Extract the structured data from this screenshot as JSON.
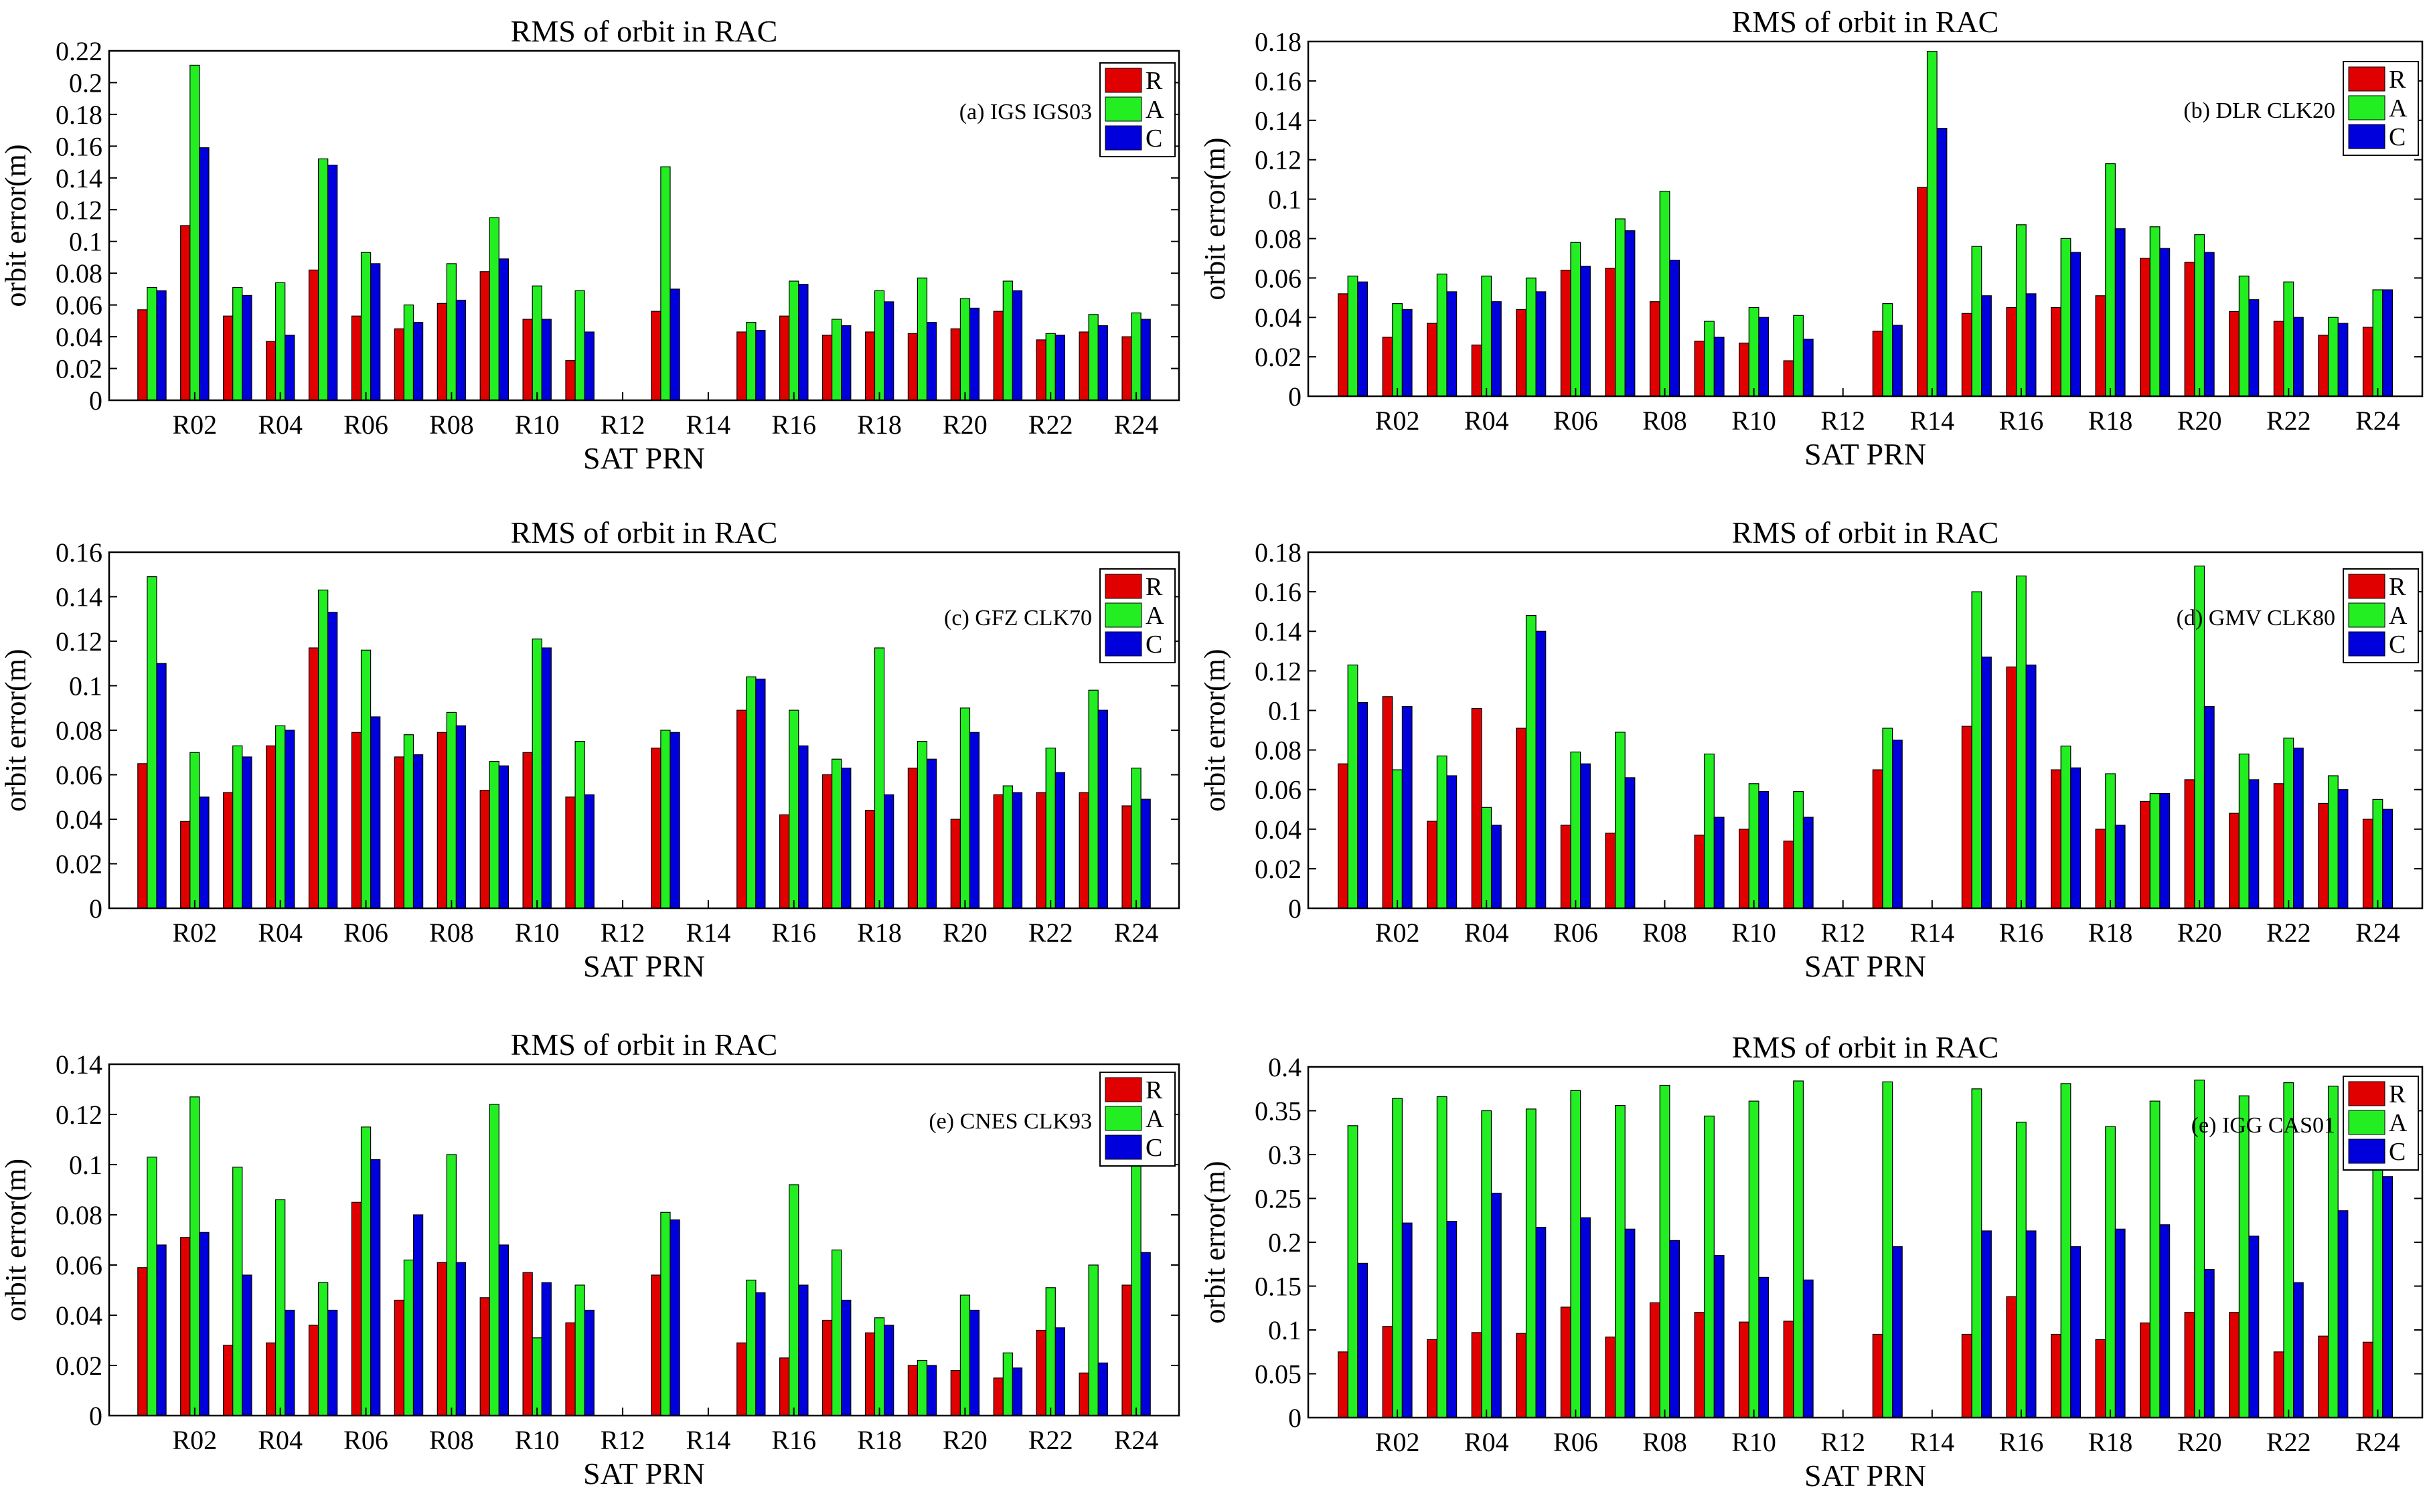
{
  "colors": {
    "R": "#e00000",
    "A": "#22ee22",
    "C": "#0000dd"
  },
  "chart_data": [
    {
      "type": "bar",
      "title": "RMS of orbit in RAC",
      "annotation": "(a) IGS IGS03",
      "xlabel": "SAT  PRN",
      "ylabel": "orbit error(m)",
      "ylim": [
        0,
        0.22
      ],
      "yticks": [
        "0",
        "0.02",
        "0.04",
        "0.06",
        "0.08",
        "0.1",
        "0.12",
        "0.14",
        "0.16",
        "0.18",
        "0.2",
        "0.22"
      ],
      "yticks_values": [
        0,
        0.02,
        0.04,
        0.06,
        0.08,
        0.1,
        0.12,
        0.14,
        0.16,
        0.18,
        0.2,
        0.22
      ],
      "categories": [
        "R01",
        "R02",
        "R03",
        "R04",
        "R05",
        "R06",
        "R07",
        "R08",
        "R09",
        "R10",
        "R11",
        "R12",
        "R13",
        "R14",
        "R15",
        "R16",
        "R17",
        "R18",
        "R19",
        "R20",
        "R21",
        "R22",
        "R23",
        "R24"
      ],
      "xtick_labels": [
        "R02",
        "R04",
        "R06",
        "R08",
        "R10",
        "R12",
        "R14",
        "R16",
        "R18",
        "R20",
        "R22",
        "R24"
      ],
      "legend": [
        "R",
        "A",
        "C"
      ],
      "series": [
        {
          "name": "R",
          "values": [
            0.057,
            0.11,
            0.053,
            0.037,
            0.082,
            0.053,
            0.045,
            0.061,
            0.081,
            0.051,
            0.025,
            0,
            0.056,
            0,
            0.043,
            0.053,
            0.041,
            0.043,
            0.042,
            0.045,
            0.056,
            0.038,
            0.043,
            0.04
          ]
        },
        {
          "name": "A",
          "values": [
            0.071,
            0.211,
            0.071,
            0.074,
            0.152,
            0.093,
            0.06,
            0.086,
            0.115,
            0.072,
            0.069,
            0,
            0.147,
            0,
            0.049,
            0.075,
            0.051,
            0.069,
            0.077,
            0.064,
            0.075,
            0.042,
            0.054,
            0.055
          ]
        },
        {
          "name": "C",
          "values": [
            0.069,
            0.159,
            0.066,
            0.041,
            0.148,
            0.086,
            0.049,
            0.063,
            0.089,
            0.051,
            0.043,
            0,
            0.07,
            0,
            0.044,
            0.073,
            0.047,
            0.062,
            0.049,
            0.058,
            0.069,
            0.041,
            0.047,
            0.051
          ]
        }
      ]
    },
    {
      "type": "bar",
      "title": "RMS of orbit in RAC",
      "annotation": "(b) DLR CLK20",
      "xlabel": "SAT  PRN",
      "ylabel": "orbit error(m)",
      "ylim": [
        0,
        0.18
      ],
      "yticks": [
        "0",
        "0.02",
        "0.04",
        "0.06",
        "0.08",
        "0.1",
        "0.12",
        "0.14",
        "0.16",
        "0.18"
      ],
      "yticks_values": [
        0,
        0.02,
        0.04,
        0.06,
        0.08,
        0.1,
        0.12,
        0.14,
        0.16,
        0.18
      ],
      "categories": [
        "R01",
        "R02",
        "R03",
        "R04",
        "R05",
        "R06",
        "R07",
        "R08",
        "R09",
        "R10",
        "R11",
        "R12",
        "R13",
        "R14",
        "R15",
        "R16",
        "R17",
        "R18",
        "R19",
        "R20",
        "R21",
        "R22",
        "R23",
        "R24"
      ],
      "xtick_labels": [
        "R02",
        "R04",
        "R06",
        "R08",
        "R10",
        "R12",
        "R14",
        "R16",
        "R18",
        "R20",
        "R22",
        "R24"
      ],
      "legend": [
        "R",
        "A",
        "C"
      ],
      "series": [
        {
          "name": "R",
          "values": [
            0.052,
            0.03,
            0.037,
            0.026,
            0.044,
            0.064,
            0.065,
            0.048,
            0.028,
            0.027,
            0.018,
            0,
            0.033,
            0.106,
            0.042,
            0.045,
            0.045,
            0.051,
            0.07,
            0.068,
            0.043,
            0.038,
            0.031,
            0.035
          ]
        },
        {
          "name": "A",
          "values": [
            0.061,
            0.047,
            0.062,
            0.061,
            0.06,
            0.078,
            0.09,
            0.104,
            0.038,
            0.045,
            0.041,
            0,
            0.047,
            0.175,
            0.076,
            0.087,
            0.08,
            0.118,
            0.086,
            0.082,
            0.061,
            0.058,
            0.04,
            0.054
          ]
        },
        {
          "name": "C",
          "values": [
            0.058,
            0.044,
            0.053,
            0.048,
            0.053,
            0.066,
            0.084,
            0.069,
            0.03,
            0.04,
            0.029,
            0,
            0.036,
            0.136,
            0.051,
            0.052,
            0.073,
            0.085,
            0.075,
            0.073,
            0.049,
            0.04,
            0.037,
            0.054
          ]
        }
      ]
    },
    {
      "type": "bar",
      "title": "RMS of orbit in RAC",
      "annotation": "(c) GFZ CLK70",
      "xlabel": "SAT  PRN",
      "ylabel": "orbit error(m)",
      "ylim": [
        0,
        0.16
      ],
      "yticks": [
        "0",
        "0.02",
        "0.04",
        "0.06",
        "0.08",
        "0.1",
        "0.12",
        "0.14",
        "0.16"
      ],
      "yticks_values": [
        0,
        0.02,
        0.04,
        0.06,
        0.08,
        0.1,
        0.12,
        0.14,
        0.16
      ],
      "categories": [
        "R01",
        "R02",
        "R03",
        "R04",
        "R05",
        "R06",
        "R07",
        "R08",
        "R09",
        "R10",
        "R11",
        "R12",
        "R13",
        "R14",
        "R15",
        "R16",
        "R17",
        "R18",
        "R19",
        "R20",
        "R21",
        "R22",
        "R23",
        "R24"
      ],
      "xtick_labels": [
        "R02",
        "R04",
        "R06",
        "R08",
        "R10",
        "R12",
        "R14",
        "R16",
        "R18",
        "R20",
        "R22",
        "R24"
      ],
      "legend": [
        "R",
        "A",
        "C"
      ],
      "series": [
        {
          "name": "R",
          "values": [
            0.065,
            0.039,
            0.052,
            0.073,
            0.117,
            0.079,
            0.068,
            0.079,
            0.053,
            0.07,
            0.05,
            0,
            0.072,
            0,
            0.089,
            0.042,
            0.06,
            0.044,
            0.063,
            0.04,
            0.051,
            0.052,
            0.052,
            0.046
          ]
        },
        {
          "name": "A",
          "values": [
            0.149,
            0.07,
            0.073,
            0.082,
            0.143,
            0.116,
            0.078,
            0.088,
            0.066,
            0.121,
            0.075,
            0,
            0.08,
            0,
            0.104,
            0.089,
            0.067,
            0.117,
            0.075,
            0.09,
            0.055,
            0.072,
            0.098,
            0.063
          ]
        },
        {
          "name": "C",
          "values": [
            0.11,
            0.05,
            0.068,
            0.08,
            0.133,
            0.086,
            0.069,
            0.082,
            0.064,
            0.117,
            0.051,
            0,
            0.079,
            0,
            0.103,
            0.073,
            0.063,
            0.051,
            0.067,
            0.079,
            0.052,
            0.061,
            0.089,
            0.049
          ]
        }
      ]
    },
    {
      "type": "bar",
      "title": "RMS of orbit in RAC",
      "annotation": "(d) GMV CLK80",
      "xlabel": "SAT  PRN",
      "ylabel": "orbit error(m)",
      "ylim": [
        0,
        0.18
      ],
      "yticks": [
        "0",
        "0.02",
        "0.04",
        "0.06",
        "0.08",
        "0.1",
        "0.12",
        "0.14",
        "0.16",
        "0.18"
      ],
      "yticks_values": [
        0,
        0.02,
        0.04,
        0.06,
        0.08,
        0.1,
        0.12,
        0.14,
        0.16,
        0.18
      ],
      "categories": [
        "R01",
        "R02",
        "R03",
        "R04",
        "R05",
        "R06",
        "R07",
        "R08",
        "R09",
        "R10",
        "R11",
        "R12",
        "R13",
        "R14",
        "R15",
        "R16",
        "R17",
        "R18",
        "R19",
        "R20",
        "R21",
        "R22",
        "R23",
        "R24"
      ],
      "xtick_labels": [
        "R02",
        "R04",
        "R06",
        "R08",
        "R10",
        "R12",
        "R14",
        "R16",
        "R18",
        "R20",
        "R22",
        "R24"
      ],
      "legend": [
        "R",
        "A",
        "C"
      ],
      "series": [
        {
          "name": "R",
          "values": [
            0.073,
            0.107,
            0.044,
            0.101,
            0.091,
            0.042,
            0.038,
            0,
            0.037,
            0.04,
            0.034,
            0,
            0.07,
            0,
            0.092,
            0.122,
            0.07,
            0.04,
            0.054,
            0.065,
            0.048,
            0.063,
            0.053,
            0.045
          ]
        },
        {
          "name": "A",
          "values": [
            0.123,
            0.07,
            0.077,
            0.051,
            0.148,
            0.079,
            0.089,
            0,
            0.078,
            0.063,
            0.059,
            0,
            0.091,
            0,
            0.16,
            0.168,
            0.082,
            0.068,
            0.058,
            0.173,
            0.078,
            0.086,
            0.067,
            0.055
          ]
        },
        {
          "name": "C",
          "values": [
            0.104,
            0.102,
            0.067,
            0.042,
            0.14,
            0.073,
            0.066,
            0,
            0.046,
            0.059,
            0.046,
            0,
            0.085,
            0,
            0.127,
            0.123,
            0.071,
            0.042,
            0.058,
            0.102,
            0.065,
            0.081,
            0.06,
            0.05
          ]
        }
      ]
    },
    {
      "type": "bar",
      "title": "RMS of orbit in RAC",
      "annotation": "(e) CNES CLK93",
      "xlabel": "SAT  PRN",
      "ylabel": "orbit error(m)",
      "ylim": [
        0,
        0.14
      ],
      "yticks": [
        "0",
        "0.02",
        "0.04",
        "0.06",
        "0.08",
        "0.1",
        "0.12",
        "0.14"
      ],
      "yticks_values": [
        0,
        0.02,
        0.04,
        0.06,
        0.08,
        0.1,
        0.12,
        0.14
      ],
      "categories": [
        "R01",
        "R02",
        "R03",
        "R04",
        "R05",
        "R06",
        "R07",
        "R08",
        "R09",
        "R10",
        "R11",
        "R12",
        "R13",
        "R14",
        "R15",
        "R16",
        "R17",
        "R18",
        "R19",
        "R20",
        "R21",
        "R22",
        "R23",
        "R24"
      ],
      "xtick_labels": [
        "R02",
        "R04",
        "R06",
        "R08",
        "R10",
        "R12",
        "R14",
        "R16",
        "R18",
        "R20",
        "R22",
        "R24"
      ],
      "legend": [
        "R",
        "A",
        "C"
      ],
      "series": [
        {
          "name": "R",
          "values": [
            0.059,
            0.071,
            0.028,
            0.029,
            0.036,
            0.085,
            0.046,
            0.061,
            0.047,
            0.057,
            0.037,
            0,
            0.056,
            0,
            0.029,
            0.023,
            0.038,
            0.033,
            0.02,
            0.018,
            0.015,
            0.034,
            0.017,
            0.052
          ]
        },
        {
          "name": "A",
          "values": [
            0.103,
            0.127,
            0.099,
            0.086,
            0.053,
            0.115,
            0.062,
            0.104,
            0.124,
            0.031,
            0.052,
            0,
            0.081,
            0,
            0.054,
            0.092,
            0.066,
            0.039,
            0.022,
            0.048,
            0.025,
            0.051,
            0.06,
            0.117
          ]
        },
        {
          "name": "C",
          "values": [
            0.068,
            0.073,
            0.056,
            0.042,
            0.042,
            0.102,
            0.08,
            0.061,
            0.068,
            0.053,
            0.042,
            0,
            0.078,
            0,
            0.049,
            0.052,
            0.046,
            0.036,
            0.02,
            0.042,
            0.019,
            0.035,
            0.021,
            0.065
          ]
        }
      ]
    },
    {
      "type": "bar",
      "title": "RMS of orbit in RAC",
      "annotation": "(e) IGG CAS01",
      "xlabel": "SAT  PRN",
      "ylabel": "orbit error(m)",
      "ylim": [
        0,
        0.4
      ],
      "yticks": [
        "0",
        "0.05",
        "0.1",
        "0.15",
        "0.2",
        "0.25",
        "0.3",
        "0.35",
        "0.4"
      ],
      "yticks_values": [
        0,
        0.05,
        0.1,
        0.15,
        0.2,
        0.25,
        0.3,
        0.35,
        0.4
      ],
      "categories": [
        "R01",
        "R02",
        "R03",
        "R04",
        "R05",
        "R06",
        "R07",
        "R08",
        "R09",
        "R10",
        "R11",
        "R12",
        "R13",
        "R14",
        "R15",
        "R16",
        "R17",
        "R18",
        "R19",
        "R20",
        "R21",
        "R22",
        "R23",
        "R24"
      ],
      "xtick_labels": [
        "R02",
        "R04",
        "R06",
        "R08",
        "R10",
        "R12",
        "R14",
        "R16",
        "R18",
        "R20",
        "R22",
        "R24"
      ],
      "legend": [
        "R",
        "A",
        "C"
      ],
      "series": [
        {
          "name": "R",
          "values": [
            0.075,
            0.104,
            0.089,
            0.097,
            0.096,
            0.126,
            0.092,
            0.131,
            0.12,
            0.109,
            0.11,
            0,
            0.095,
            0,
            0.095,
            0.138,
            0.095,
            0.089,
            0.108,
            0.12,
            0.12,
            0.075,
            0.093,
            0.086
          ]
        },
        {
          "name": "A",
          "values": [
            0.333,
            0.364,
            0.366,
            0.35,
            0.352,
            0.373,
            0.356,
            0.379,
            0.344,
            0.361,
            0.384,
            0,
            0.383,
            0,
            0.375,
            0.337,
            0.381,
            0.332,
            0.361,
            0.385,
            0.367,
            0.382,
            0.378,
            0.29
          ]
        },
        {
          "name": "C",
          "values": [
            0.176,
            0.222,
            0.224,
            0.256,
            0.217,
            0.228,
            0.215,
            0.202,
            0.185,
            0.16,
            0.157,
            0,
            0.195,
            0,
            0.213,
            0.213,
            0.195,
            0.215,
            0.22,
            0.169,
            0.207,
            0.154,
            0.236,
            0.275
          ]
        }
      ]
    }
  ]
}
